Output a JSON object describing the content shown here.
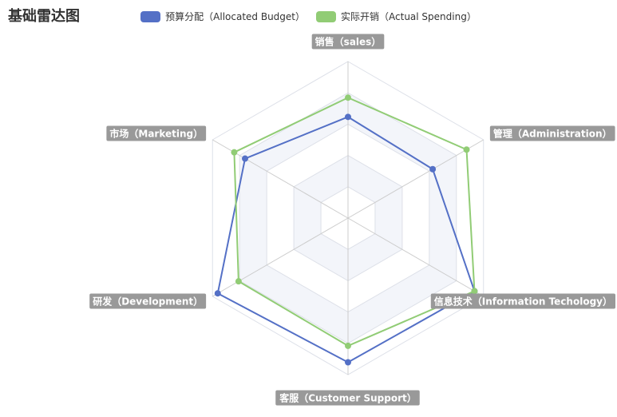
{
  "chart_data": {
    "type": "radar",
    "title": "基础雷达图",
    "indicators": [
      {
        "name": "销售（sales）",
        "max": 6500
      },
      {
        "name": "管理（Administration）",
        "max": 16000
      },
      {
        "name": "信息技术（Information Techology）",
        "max": 30000
      },
      {
        "name": "客服（Customer Support）",
        "max": 38000
      },
      {
        "name": "研发（Development）",
        "max": 52000
      },
      {
        "name": "市场（Marketing）",
        "max": 25000
      }
    ],
    "series": [
      {
        "name": "预算分配（Allocated Budget）",
        "color": "#5470c6",
        "values": [
          4200,
          10000,
          28000,
          35000,
          50000,
          19000
        ]
      },
      {
        "name": "实际开销（Actual Spending）",
        "color": "#91cc75",
        "values": [
          5000,
          14000,
          28000,
          31000,
          42000,
          21000
        ]
      }
    ],
    "split_number": 5,
    "legend_position": "top-center"
  }
}
